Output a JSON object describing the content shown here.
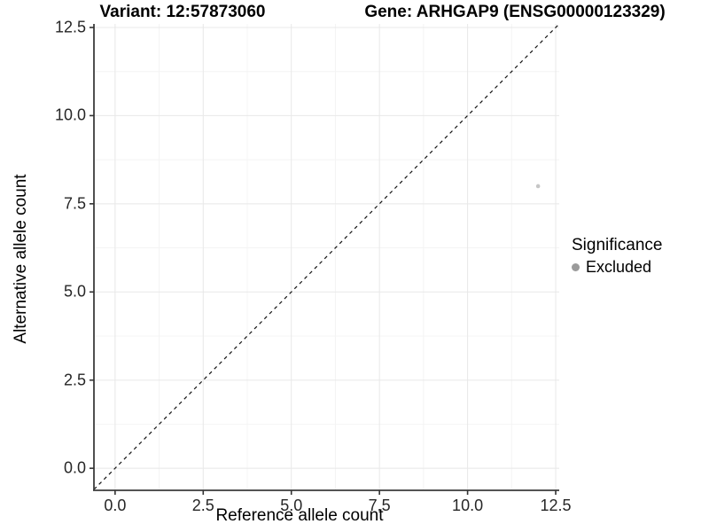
{
  "title": {
    "left": "Variant: 12:57873060",
    "right": "Gene: ARHGAP9 (ENSG00000123329)"
  },
  "chart_data": {
    "type": "scatter",
    "xlabel": "Reference allele count",
    "ylabel": "Alternative allele count",
    "xlim": [
      -0.6,
      12.6
    ],
    "ylim": [
      -0.6,
      12.6
    ],
    "xticks": [
      0.0,
      2.5,
      5.0,
      7.5,
      10.0,
      12.5
    ],
    "yticks": [
      0.0,
      2.5,
      5.0,
      7.5,
      10.0,
      12.5
    ],
    "xtick_labels": [
      "0.0",
      "2.5",
      "5.0",
      "7.5",
      "10.0",
      "12.5"
    ],
    "ytick_labels": [
      "0.0",
      "2.5",
      "5.0",
      "7.5",
      "10.0",
      "12.5"
    ],
    "xticks_minor": [
      1.25,
      3.75,
      6.25,
      8.75,
      11.25
    ],
    "yticks_minor": [
      1.25,
      3.75,
      6.25,
      8.75,
      11.25
    ],
    "grid": true,
    "points": [
      {
        "x": 12,
        "y": 8,
        "series": "Excluded",
        "color": "#c6c6c6"
      }
    ],
    "reference_line": {
      "type": "identity",
      "style": "dashed",
      "color": "#111111"
    },
    "legend": {
      "title": "Significance",
      "position": "right",
      "entries": [
        {
          "label": "Excluded",
          "color": "#9b9b9b"
        }
      ]
    }
  },
  "colors": {
    "panel_background": "#ffffff",
    "grid_major": "#e8e8e8",
    "grid_minor": "#f4f4f4",
    "axis_line": "#3c3c3c",
    "tick_mark": "#333333"
  }
}
